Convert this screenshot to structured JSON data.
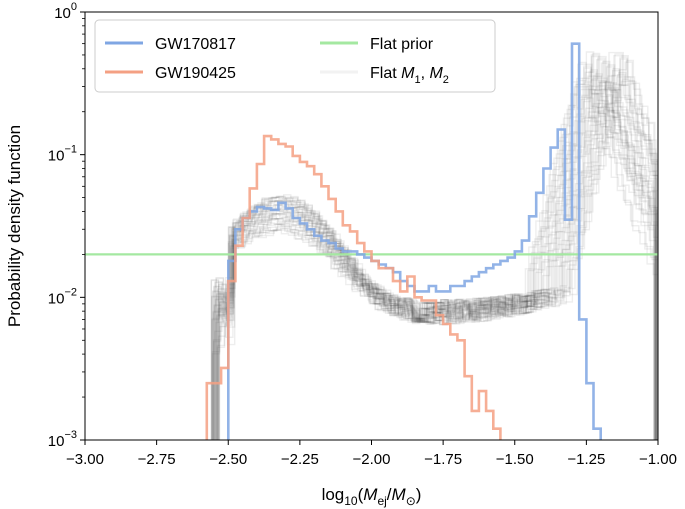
{
  "chart_data": {
    "type": "line",
    "title": "",
    "xlabel": "log10(Mej/M⊙)",
    "xlabel_parts": {
      "prefix": "log",
      "sub": "10",
      "open": "(",
      "m1": "M",
      "m1_sub": "ej",
      "slash": "/",
      "m2": "M",
      "m2_sub": "⊙",
      "close": ")"
    },
    "ylabel": "Probability density function",
    "xlim": [
      -3.0,
      -1.0
    ],
    "ylim": [
      0.001,
      1
    ],
    "yscale": "log",
    "xticks": [
      -3.0,
      -2.75,
      -2.5,
      -2.25,
      -2.0,
      -1.75,
      -1.5,
      -1.25,
      -1.0
    ],
    "xtick_labels": [
      "−3.00",
      "−2.75",
      "−2.50",
      "−2.25",
      "−2.00",
      "−1.75",
      "−1.50",
      "−1.25",
      "−1.00"
    ],
    "yticks": [
      0.001,
      0.01,
      0.1,
      1
    ],
    "ytick_labels": [
      {
        "base": "10",
        "exp": "−3"
      },
      {
        "base": "10",
        "exp": "−2"
      },
      {
        "base": "10",
        "exp": "−1"
      },
      {
        "base": "10",
        "exp": "0"
      }
    ],
    "legend": {
      "location": "top-left",
      "entries": [
        {
          "label": "GW170817",
          "color": "#7fa6e3"
        },
        {
          "label": "Flat prior",
          "color": "#a4e8a1"
        },
        {
          "label": "GW190425",
          "color": "#f4a083"
        },
        {
          "label": "Flat M1, M2",
          "label_parts": [
            "Flat ",
            "M",
            "1",
            ", ",
            "M",
            "2"
          ],
          "color": "#cccccc"
        }
      ]
    },
    "series": [
      {
        "name": "GW170817",
        "color": "#7fa6e3",
        "type": "step",
        "bin_edges": [
          -2.55,
          -2.5,
          -2.475,
          -2.45,
          -2.425,
          -2.4,
          -2.375,
          -2.35,
          -2.325,
          -2.3,
          -2.275,
          -2.25,
          -2.225,
          -2.2,
          -2.175,
          -2.15,
          -2.125,
          -2.1,
          -2.075,
          -2.05,
          -2.025,
          -2.0,
          -1.975,
          -1.95,
          -1.925,
          -1.9,
          -1.875,
          -1.85,
          -1.825,
          -1.8,
          -1.775,
          -1.75,
          -1.725,
          -1.7,
          -1.675,
          -1.65,
          -1.625,
          -1.6,
          -1.575,
          -1.55,
          -1.525,
          -1.5,
          -1.475,
          -1.45,
          -1.425,
          -1.4,
          -1.375,
          -1.35,
          -1.325,
          -1.3,
          -1.275,
          -1.25,
          -1.225,
          -1.2,
          -1.175,
          -1.15
        ],
        "values": [
          0.0005,
          0.018,
          0.03,
          0.036,
          0.04,
          0.043,
          0.042,
          0.041,
          0.046,
          0.042,
          0.036,
          0.033,
          0.03,
          0.027,
          0.025,
          0.024,
          0.022,
          0.021,
          0.021,
          0.02,
          0.019,
          0.018,
          0.017,
          0.016,
          0.015,
          0.013,
          0.012,
          0.011,
          0.011,
          0.012,
          0.011,
          0.011,
          0.012,
          0.012,
          0.013,
          0.014,
          0.015,
          0.016,
          0.017,
          0.018,
          0.019,
          0.021,
          0.025,
          0.037,
          0.054,
          0.08,
          0.112,
          0.15,
          0.035,
          0.6,
          0.007,
          0.0025,
          0.0012,
          0.0005,
          0.0005
        ]
      },
      {
        "name": "GW190425",
        "color": "#f4a083",
        "type": "step",
        "bin_edges": [
          -2.575,
          -2.525,
          -2.5,
          -2.475,
          -2.45,
          -2.425,
          -2.4,
          -2.375,
          -2.35,
          -2.325,
          -2.3,
          -2.275,
          -2.25,
          -2.225,
          -2.2,
          -2.175,
          -2.15,
          -2.125,
          -2.1,
          -2.075,
          -2.05,
          -2.025,
          -2.0,
          -1.975,
          -1.95,
          -1.925,
          -1.9,
          -1.875,
          -1.85,
          -1.825,
          -1.8,
          -1.775,
          -1.75,
          -1.725,
          -1.7,
          -1.675,
          -1.65,
          -1.625,
          -1.6,
          -1.575,
          -1.55,
          -1.525
        ],
        "values": [
          0.0025,
          0.0032,
          0.013,
          0.023,
          0.036,
          0.058,
          0.086,
          0.135,
          0.128,
          0.119,
          0.114,
          0.098,
          0.089,
          0.083,
          0.073,
          0.06,
          0.049,
          0.04,
          0.032,
          0.029,
          0.024,
          0.021,
          0.018,
          0.016,
          0.016,
          0.013,
          0.011,
          0.014,
          0.01,
          0.0095,
          0.0095,
          0.0075,
          0.0065,
          0.0055,
          0.005,
          0.0028,
          0.0016,
          0.0022,
          0.0016,
          0.0012,
          0.0005
        ]
      }
    ],
    "flat_prior_level": 0.02,
    "flat_m1m2_band": {
      "description": "many light grey step realizations",
      "color": "#555555"
    }
  }
}
